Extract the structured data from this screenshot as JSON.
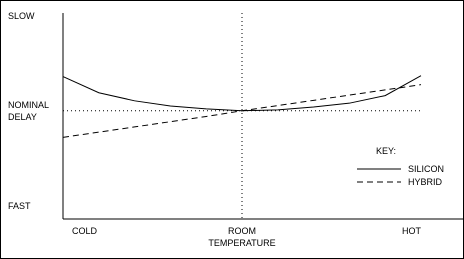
{
  "chart_data": {
    "type": "line",
    "categories": [
      "COLD",
      null,
      null,
      null,
      null,
      "ROOM TEMPERATURE",
      null,
      null,
      null,
      null,
      "HOT"
    ],
    "series": [
      {
        "name": "SILICON",
        "color": "#000000",
        "dash": "solid",
        "values": [
          0.36,
          0.19,
          0.105,
          0.05,
          0.02,
          0,
          0.01,
          0.04,
          0.08,
          0.16,
          0.37
        ]
      },
      {
        "name": "HYBRID",
        "color": "#000000",
        "dash": "dashed",
        "values": [
          -0.28,
          -0.225,
          -0.17,
          -0.115,
          -0.06,
          0,
          0.055,
          0.11,
          0.165,
          0.22,
          0.275
        ]
      }
    ],
    "ylim": [
      -1.14,
      1.03
    ],
    "yticks": [
      {
        "value": -1,
        "label": "FAST"
      },
      {
        "value": 0,
        "label": "NOMINAL DELAY"
      },
      {
        "value": 1,
        "label": "SLOW"
      }
    ],
    "grid": "inner",
    "legend_title": "KEY:",
    "legend": "right"
  }
}
